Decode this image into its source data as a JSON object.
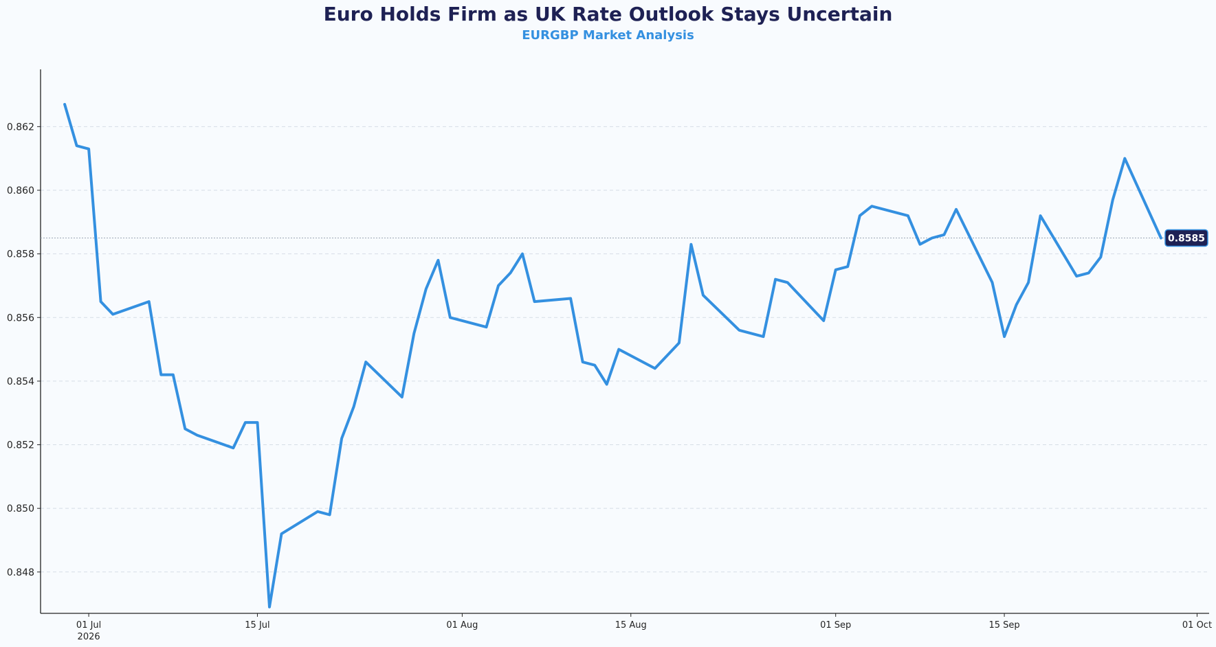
{
  "header": {
    "title": "Euro Holds Firm as UK Rate Outlook Stays Uncertain",
    "subtitle": "EURGBP Market Analysis"
  },
  "chart_data": {
    "type": "line",
    "title": "Euro Holds Firm as UK Rate Outlook Stays Uncertain",
    "subtitle": "EURGBP Market Analysis",
    "xlabel": "",
    "ylabel": "",
    "x_axis": "date",
    "xlim": [
      "2026-06-27",
      "2026-10-02"
    ],
    "ylim": [
      0.8467,
      0.8638
    ],
    "yticks": [
      0.848,
      0.85,
      0.852,
      0.854,
      0.856,
      0.858,
      0.86,
      0.862
    ],
    "ytick_labels": [
      "0.848",
      "0.850",
      "0.852",
      "0.854",
      "0.856",
      "0.858",
      "0.860",
      "0.862"
    ],
    "xticks": [
      {
        "date": "2026-07-01",
        "label": "01 Jul",
        "sublabel": "2026"
      },
      {
        "date": "2026-07-15",
        "label": "15 Jul",
        "sublabel": ""
      },
      {
        "date": "2026-08-01",
        "label": "01 Aug",
        "sublabel": ""
      },
      {
        "date": "2026-08-15",
        "label": "15 Aug",
        "sublabel": ""
      },
      {
        "date": "2026-09-01",
        "label": "01 Sep",
        "sublabel": ""
      },
      {
        "date": "2026-09-15",
        "label": "15 Sep",
        "sublabel": ""
      },
      {
        "date": "2026-10-01",
        "label": "01 Oct",
        "sublabel": ""
      }
    ],
    "grid": "horizontal dashed",
    "colors": {
      "line": "#3490e0",
      "title": "#1e2154",
      "subtitle": "#3490e0",
      "badge": "#1e2154"
    },
    "last_value": 0.8585,
    "last_value_label": "0.8585",
    "series": [
      {
        "points": [
          [
            "2026-06-29",
            0.8627
          ],
          [
            "2026-06-30",
            0.8614
          ],
          [
            "2026-07-01",
            0.8613
          ],
          [
            "2026-07-02",
            0.8565
          ],
          [
            "2026-07-03",
            0.8561
          ],
          [
            "2026-07-06",
            0.8565
          ],
          [
            "2026-07-07",
            0.8542
          ],
          [
            "2026-07-08",
            0.8542
          ],
          [
            "2026-07-09",
            0.8525
          ],
          [
            "2026-07-10",
            0.8523
          ],
          [
            "2026-07-13",
            0.8519
          ],
          [
            "2026-07-14",
            0.8527
          ],
          [
            "2026-07-15",
            0.8527
          ],
          [
            "2026-07-16",
            0.8469
          ],
          [
            "2026-07-17",
            0.8492
          ],
          [
            "2026-07-20",
            0.8499
          ],
          [
            "2026-07-21",
            0.8498
          ],
          [
            "2026-07-22",
            0.8522
          ],
          [
            "2026-07-23",
            0.8532
          ],
          [
            "2026-07-24",
            0.8546
          ],
          [
            "2026-07-27",
            0.8535
          ],
          [
            "2026-07-28",
            0.8555
          ],
          [
            "2026-07-29",
            0.8569
          ],
          [
            "2026-07-30",
            0.8578
          ],
          [
            "2026-07-31",
            0.856
          ],
          [
            "2026-08-03",
            0.8557
          ],
          [
            "2026-08-04",
            0.857
          ],
          [
            "2026-08-05",
            0.8574
          ],
          [
            "2026-08-06",
            0.858
          ],
          [
            "2026-08-07",
            0.8565
          ],
          [
            "2026-08-10",
            0.8566
          ],
          [
            "2026-08-11",
            0.8546
          ],
          [
            "2026-08-12",
            0.8545
          ],
          [
            "2026-08-13",
            0.8539
          ],
          [
            "2026-08-14",
            0.855
          ],
          [
            "2026-08-17",
            0.8544
          ],
          [
            "2026-08-19",
            0.8552
          ],
          [
            "2026-08-20",
            0.8583
          ],
          [
            "2026-08-21",
            0.8567
          ],
          [
            "2026-08-24",
            0.8556
          ],
          [
            "2026-08-26",
            0.8554
          ],
          [
            "2026-08-27",
            0.8572
          ],
          [
            "2026-08-28",
            0.8571
          ],
          [
            "2026-08-31",
            0.8559
          ],
          [
            "2026-09-01",
            0.8575
          ],
          [
            "2026-09-02",
            0.8576
          ],
          [
            "2026-09-03",
            0.8592
          ],
          [
            "2026-09-04",
            0.8595
          ],
          [
            "2026-09-07",
            0.8592
          ],
          [
            "2026-09-08",
            0.8583
          ],
          [
            "2026-09-09",
            0.8585
          ],
          [
            "2026-09-10",
            0.8586
          ],
          [
            "2026-09-11",
            0.8594
          ],
          [
            "2026-09-14",
            0.8571
          ],
          [
            "2026-09-15",
            0.8554
          ],
          [
            "2026-09-16",
            0.8564
          ],
          [
            "2026-09-17",
            0.8571
          ],
          [
            "2026-09-18",
            0.8592
          ],
          [
            "2026-09-21",
            0.8573
          ],
          [
            "2026-09-22",
            0.8574
          ],
          [
            "2026-09-23",
            0.8579
          ],
          [
            "2026-09-24",
            0.8597
          ],
          [
            "2026-09-25",
            0.861
          ],
          [
            "2026-09-28",
            0.8585
          ]
        ]
      }
    ]
  }
}
